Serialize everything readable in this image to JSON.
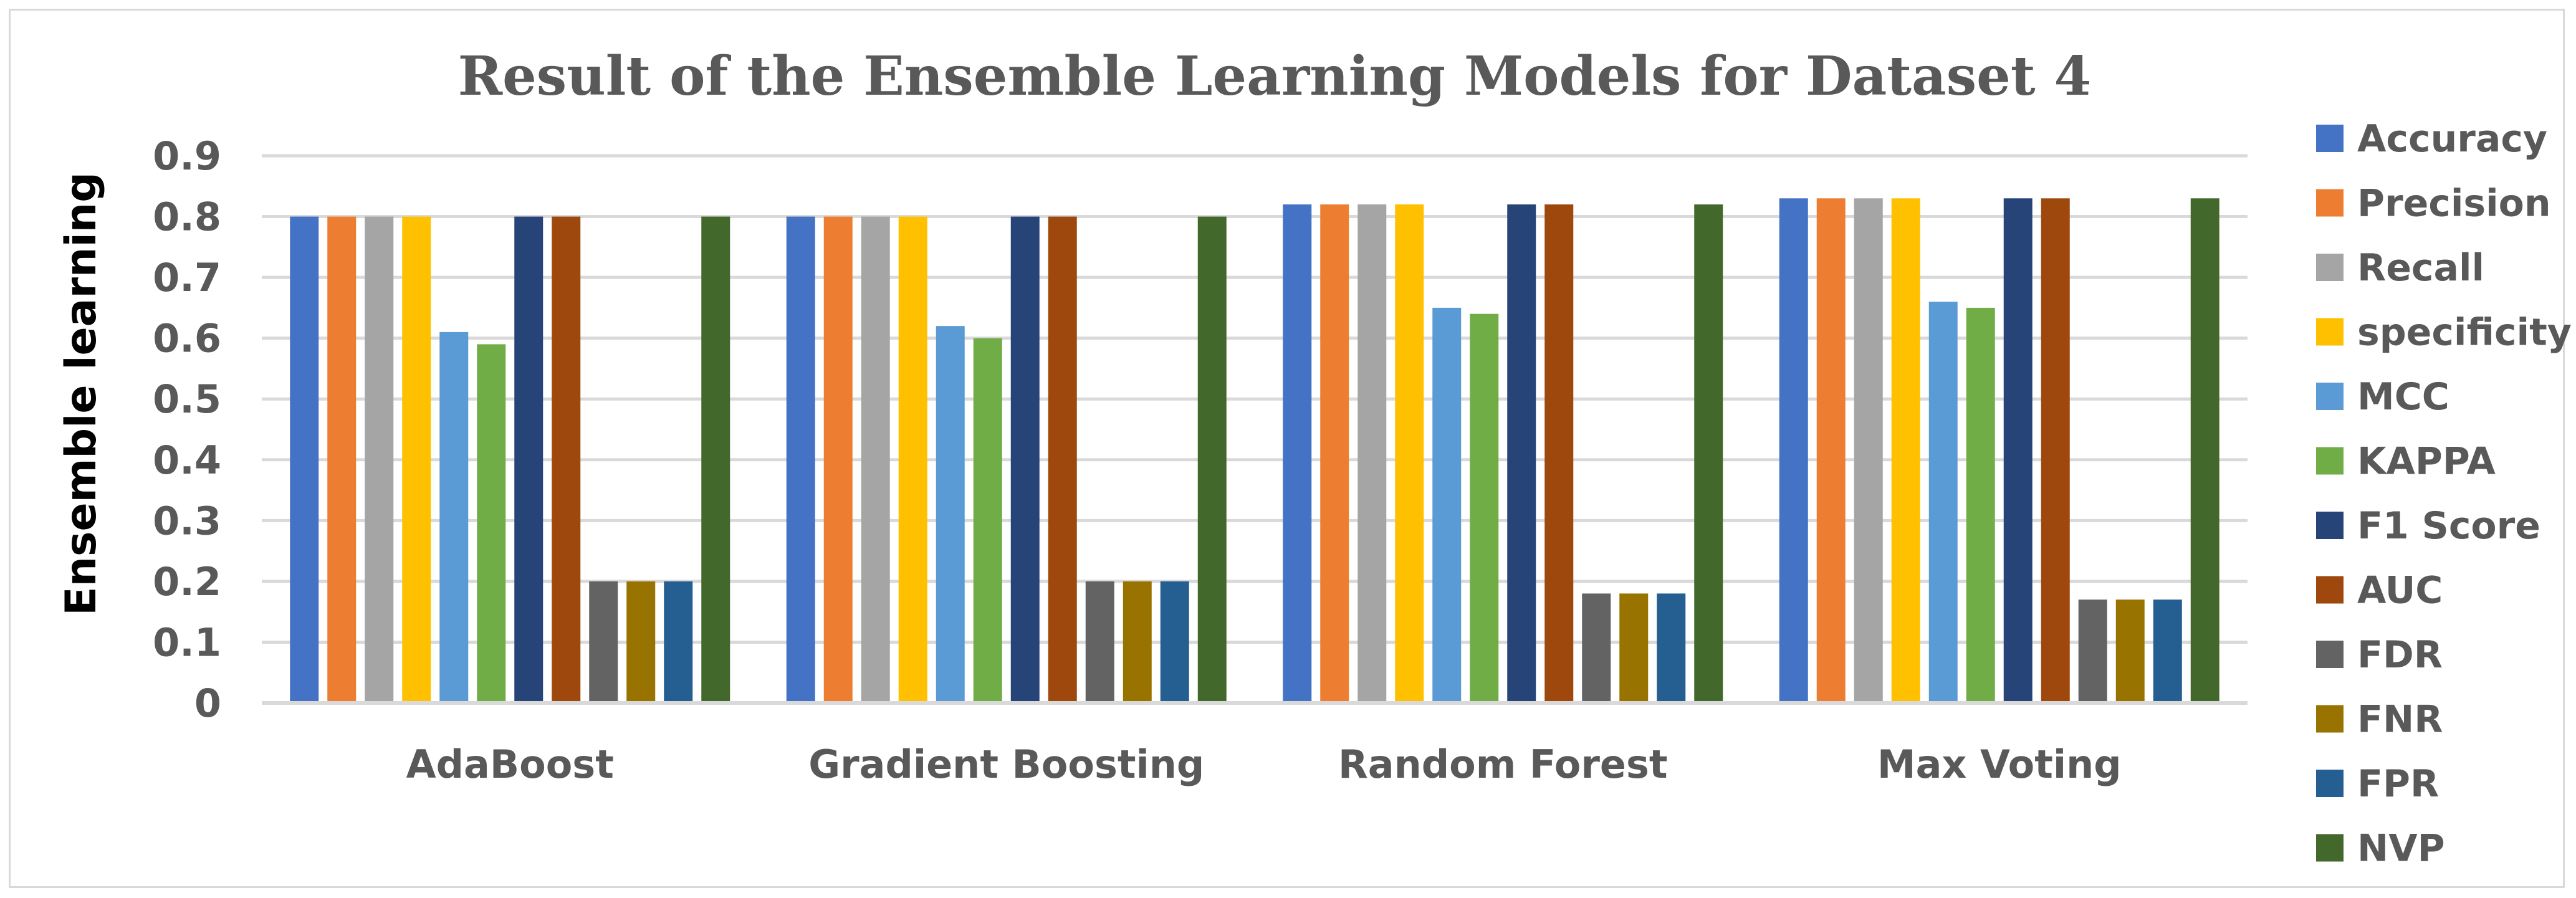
{
  "chart_data": {
    "type": "bar",
    "title": "Result of  the Ensemble Learning Models for Dataset 4",
    "ylabel": "Ensemble learning",
    "xlabel": "",
    "ylim": [
      0,
      0.9
    ],
    "yticks": [
      "0",
      "0.1",
      "0.2",
      "0.3",
      "0.4",
      "0.5",
      "0.6",
      "0.7",
      "0.8",
      "0.9"
    ],
    "grid": true,
    "legend_position": "right",
    "categories": [
      "AdaBoost",
      "Gradient Boosting",
      "Random Forest",
      "Max Voting"
    ],
    "series": [
      {
        "name": "Accuracy",
        "color": "#4472C4",
        "values": [
          0.8,
          0.8,
          0.82,
          0.83
        ]
      },
      {
        "name": "Precision",
        "color": "#ED7D31",
        "values": [
          0.8,
          0.8,
          0.82,
          0.83
        ]
      },
      {
        "name": "Recall",
        "color": "#A5A5A5",
        "values": [
          0.8,
          0.8,
          0.82,
          0.83
        ]
      },
      {
        "name": "specificity",
        "color": "#FFC000",
        "values": [
          0.8,
          0.8,
          0.82,
          0.83
        ]
      },
      {
        "name": "MCC",
        "color": "#5B9BD5",
        "values": [
          0.61,
          0.62,
          0.65,
          0.66
        ]
      },
      {
        "name": "KAPPA",
        "color": "#70AD47",
        "values": [
          0.59,
          0.6,
          0.64,
          0.65
        ]
      },
      {
        "name": "F1 Score",
        "color": "#264478",
        "values": [
          0.8,
          0.8,
          0.82,
          0.83
        ]
      },
      {
        "name": "AUC",
        "color": "#9E480E",
        "values": [
          0.8,
          0.8,
          0.82,
          0.83
        ]
      },
      {
        "name": "FDR",
        "color": "#636363",
        "values": [
          0.2,
          0.2,
          0.18,
          0.17
        ]
      },
      {
        "name": "FNR",
        "color": "#997300",
        "values": [
          0.2,
          0.2,
          0.18,
          0.17
        ]
      },
      {
        "name": "FPR",
        "color": "#255E91",
        "values": [
          0.2,
          0.2,
          0.18,
          0.17
        ]
      },
      {
        "name": "NVP",
        "color": "#43682B",
        "values": [
          0.8,
          0.8,
          0.82,
          0.83
        ]
      }
    ]
  }
}
